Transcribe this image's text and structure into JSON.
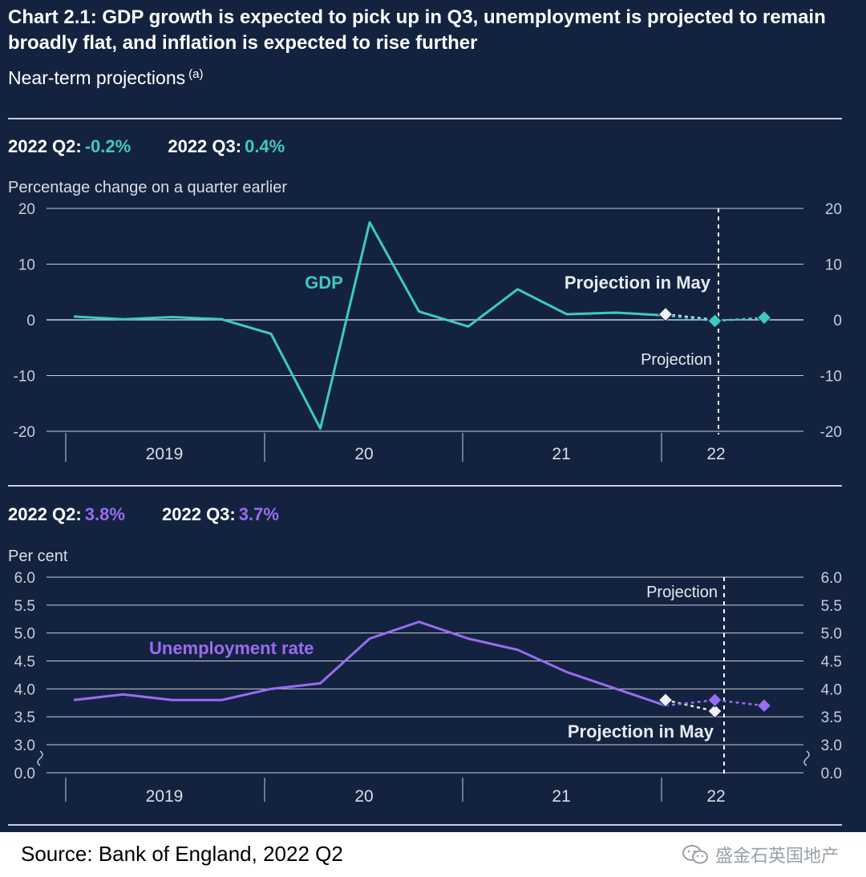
{
  "title": "Chart 2.1: GDP growth is expected to pick up in Q3, unemployment is projected to remain broadly flat, and inflation is expected to rise further",
  "subtitle": "Near-term projections",
  "subtitle_note": "(a)",
  "colors": {
    "background": "#13233f",
    "gdp": "#3ec9c4",
    "unemployment": "#9a6cf0",
    "may_marker": "#f2f0fb"
  },
  "gdp_panel": {
    "kpi": [
      {
        "label": "2022 Q2:",
        "value": "-0.2%"
      },
      {
        "label": "2022 Q3:",
        "value": "0.4%"
      }
    ]
  },
  "unemp_panel": {
    "kpi": [
      {
        "label": "2022 Q2:",
        "value": "3.8%"
      },
      {
        "label": "2022 Q3:",
        "value": "3.7%"
      }
    ]
  },
  "chart_data": [
    {
      "type": "line",
      "ylabel": "Percentage change on a quarter earlier",
      "ylim": [
        -20,
        20
      ],
      "yticks": [
        20,
        10,
        0,
        -10,
        -20
      ],
      "ytick_labels": [
        "20",
        "10",
        "0",
        "-10",
        "-20"
      ],
      "year_labels": [
        "2019",
        "20",
        "21",
        "22"
      ],
      "x": [
        "2019 Q1",
        "2019 Q2",
        "2019 Q3",
        "2019 Q4",
        "2020 Q1",
        "2020 Q2",
        "2020 Q3",
        "2020 Q4",
        "2021 Q1",
        "2021 Q2",
        "2021 Q3",
        "2021 Q4",
        "2022 Q1"
      ],
      "series": [
        {
          "name": "GDP",
          "values": [
            0.6,
            0.1,
            0.5,
            0.1,
            -2.5,
            -19.5,
            17.5,
            1.5,
            -1.2,
            5.5,
            1.0,
            1.3,
            0.8
          ]
        }
      ],
      "projection": {
        "label": "Projection",
        "x": [
          "2022 Q1",
          "2022 Q2",
          "2022 Q3"
        ],
        "values": [
          0.8,
          -0.2,
          0.4
        ]
      },
      "projection_in_may": {
        "label": "Projection in May",
        "x": [
          "2022 Q1",
          "2022 Q2"
        ],
        "values": [
          1.0,
          0.0
        ]
      },
      "grid": true,
      "legend": "inline"
    },
    {
      "type": "line",
      "ylabel": "Per cent",
      "ylim": [
        0,
        6
      ],
      "axis_break": [
        0,
        3
      ],
      "yticks": [
        6.0,
        5.5,
        5.0,
        4.5,
        4.0,
        3.5,
        3.0,
        0.0
      ],
      "ytick_labels": [
        "6.0",
        "5.5",
        "5.0",
        "4.5",
        "4.0",
        "3.5",
        "3.0",
        "0.0"
      ],
      "year_labels": [
        "2019",
        "20",
        "21",
        "22"
      ],
      "x": [
        "2019 Q1",
        "2019 Q2",
        "2019 Q3",
        "2019 Q4",
        "2020 Q1",
        "2020 Q2",
        "2020 Q3",
        "2020 Q4",
        "2021 Q1",
        "2021 Q2",
        "2021 Q3",
        "2021 Q4",
        "2022 Q1"
      ],
      "series": [
        {
          "name": "Unemployment rate",
          "values": [
            3.8,
            3.9,
            3.8,
            3.8,
            4.0,
            4.1,
            4.9,
            5.2,
            4.9,
            4.7,
            4.3,
            4.0,
            3.7
          ]
        }
      ],
      "projection": {
        "label": "Projection",
        "x": [
          "2022 Q1",
          "2022 Q2",
          "2022 Q3"
        ],
        "values": [
          3.7,
          3.8,
          3.7
        ]
      },
      "projection_in_may": {
        "label": "Projection in May",
        "x": [
          "2022 Q1",
          "2022 Q2"
        ],
        "values": [
          3.8,
          3.6
        ]
      },
      "grid": true,
      "legend": "inline"
    }
  ],
  "source": "Source: Bank of England, 2022 Q2",
  "watermark": "盛金石英国地产"
}
